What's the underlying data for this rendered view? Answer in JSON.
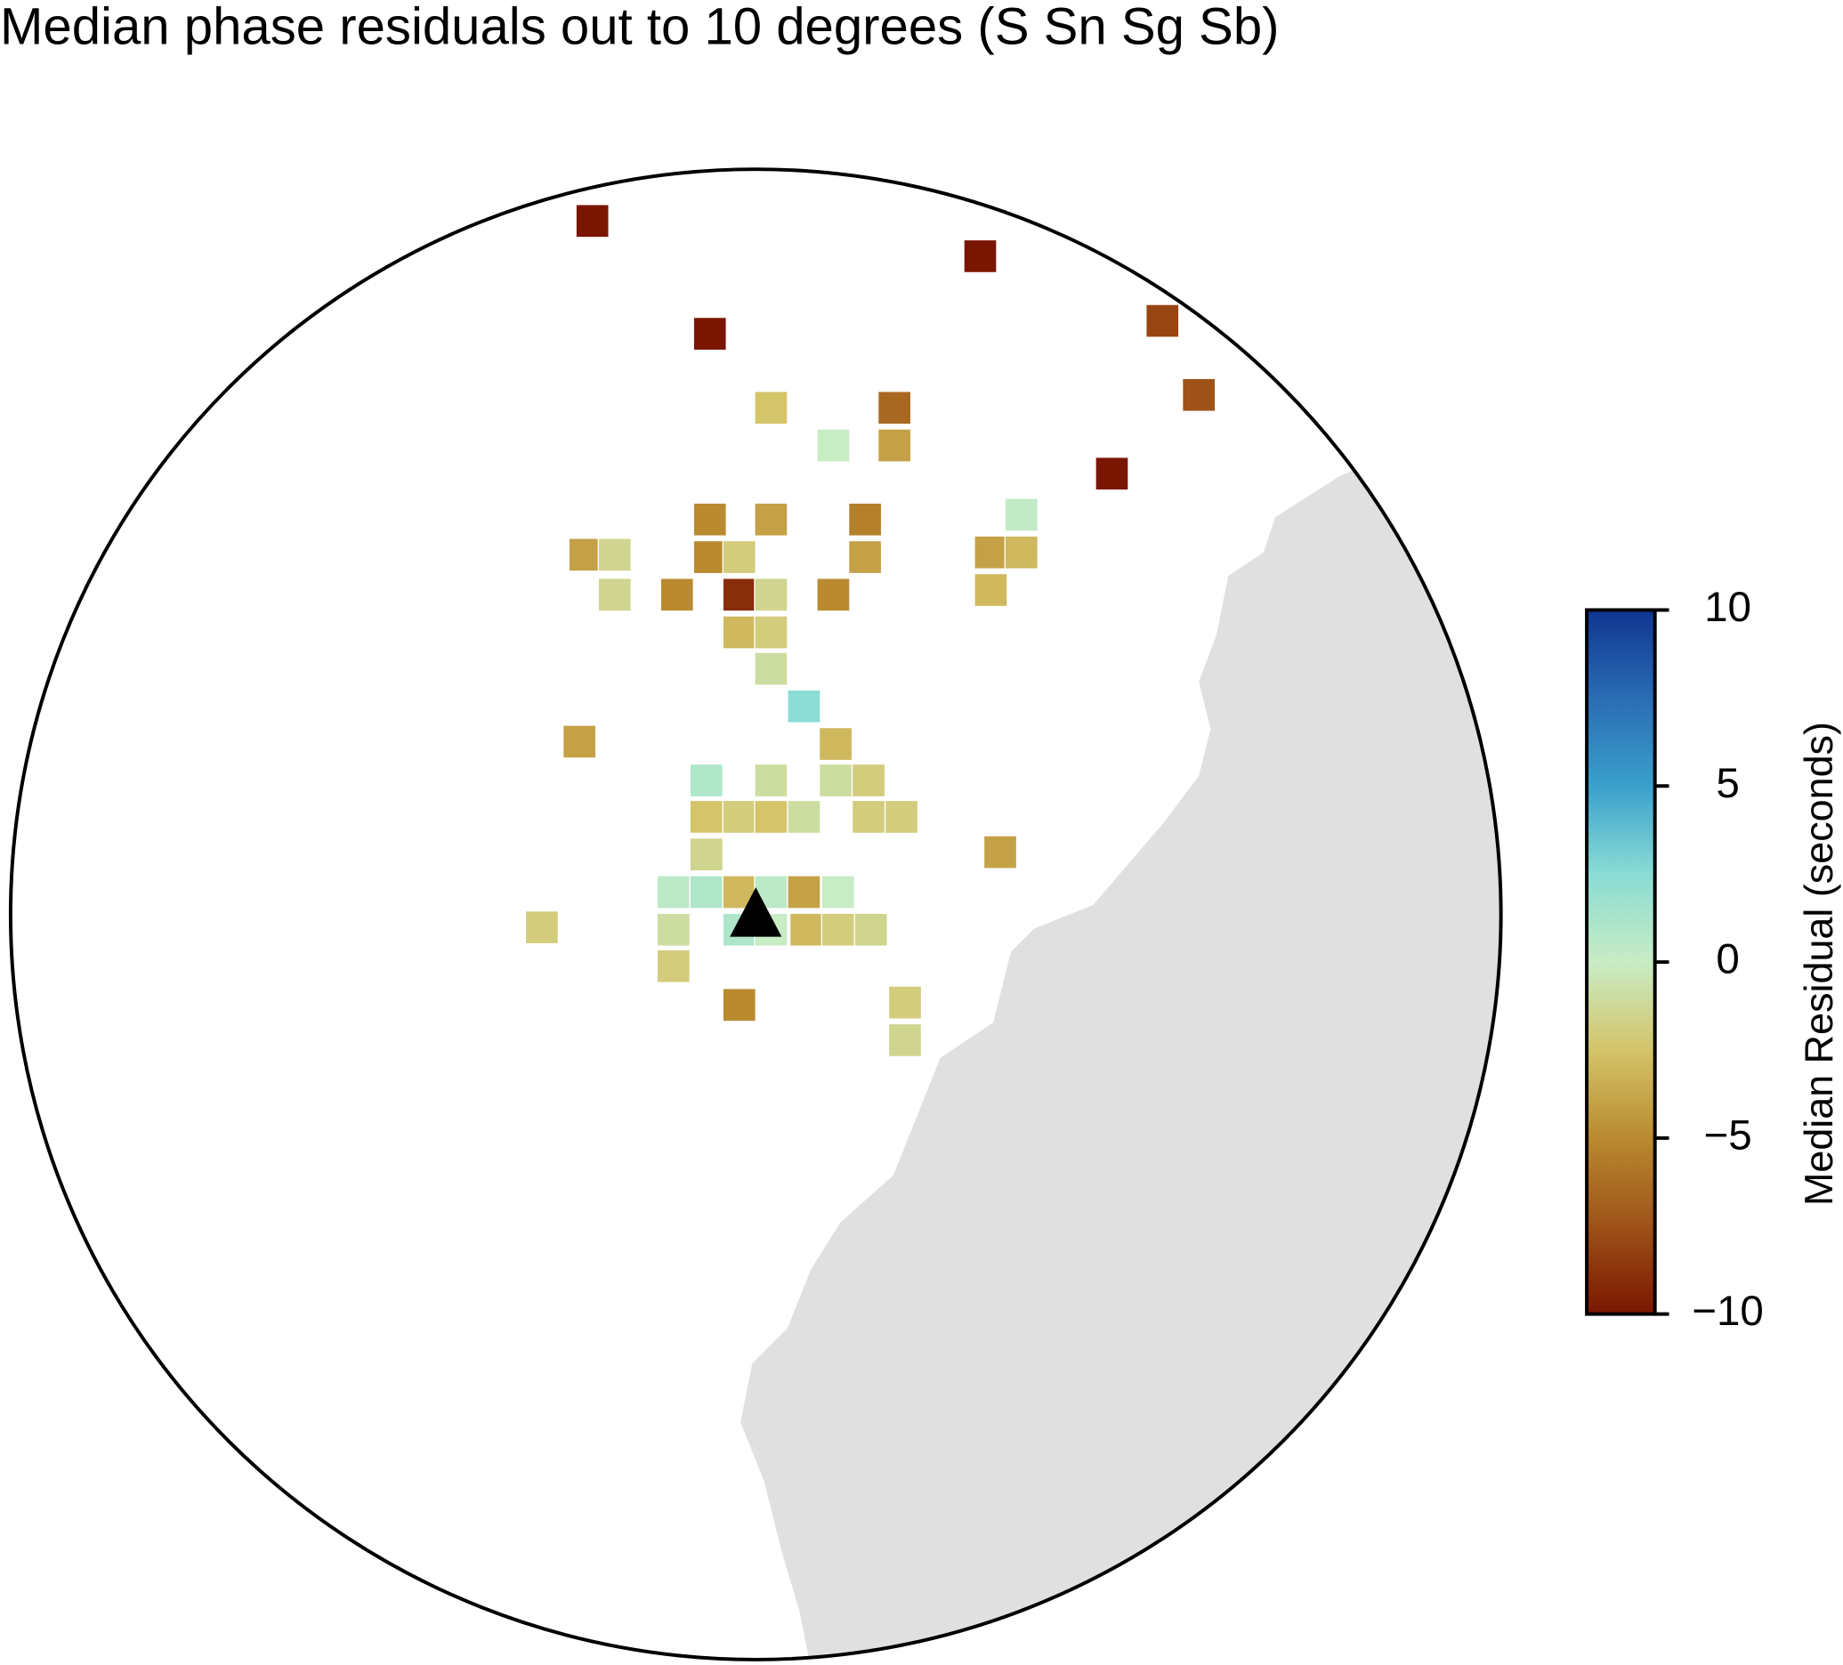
{
  "chart_data": {
    "type": "heatmap-cells",
    "title": "Median phase residuals out to 10 degrees (S Sn Sg Sb)",
    "colorbar_label": "Median Residual (seconds)",
    "values": [
      -10,
      -10,
      -10,
      -8,
      -7.5,
      -2.5,
      -6.5,
      0,
      -4,
      -10,
      0.3,
      -5,
      -4,
      -5.5,
      -4,
      -1.5,
      -5,
      -2,
      -4,
      -4,
      -3,
      -1.5,
      -5,
      -9,
      -1.5,
      -5,
      -3,
      -3,
      -2,
      -1,
      2.5,
      -4,
      -3,
      1,
      -1,
      -1,
      -2,
      -2.5,
      -2,
      -2.5,
      -1,
      -2,
      -2,
      -4,
      -1.5,
      0.5,
      1,
      -3,
      0.5,
      -4,
      0,
      -2,
      -1,
      1,
      0,
      -3,
      -2,
      -1.5,
      -2,
      -5,
      -2,
      -1.5
    ],
    "clim": [
      -10,
      10
    ],
    "cticks": [
      {
        "value": -10,
        "label": "−10"
      },
      {
        "value": -5,
        "label": "−5"
      },
      0,
      5,
      10
    ],
    "colors": [
      "#7a1600",
      "#9e5218",
      "#b98a30",
      "#d4c46a",
      "#c8ecc4",
      "#8adcd4",
      "#3aa0cc",
      "#2a6cb4",
      "#0f3590"
    ]
  }
}
